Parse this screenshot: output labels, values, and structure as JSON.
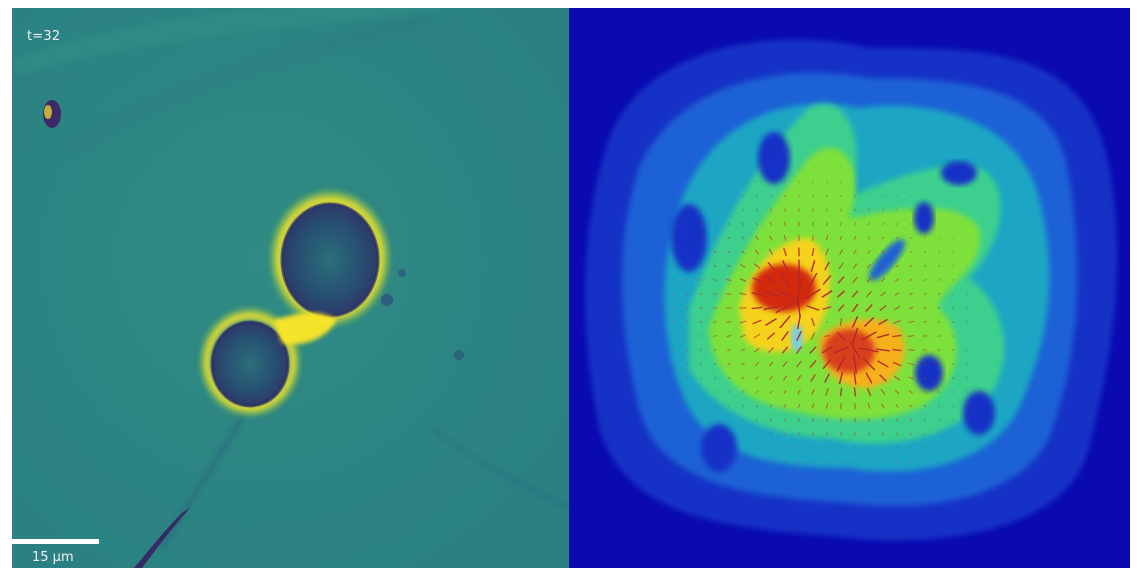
{
  "microscopy": {
    "time_label": "t=32",
    "scale_label": "15 μm",
    "colormap_left": "viridis",
    "colormap_right": "jet",
    "vector_color": "#b3262a"
  }
}
